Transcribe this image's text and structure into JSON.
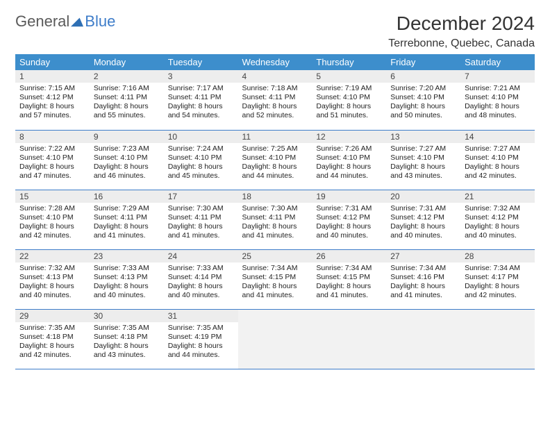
{
  "branding": {
    "word1": "General",
    "word2": "Blue",
    "logo_fill": "#2e6fb4"
  },
  "title": "December 2024",
  "location": "Terrebonne, Quebec, Canada",
  "colors": {
    "header_bg": "#3d8ecc",
    "header_text": "#ffffff",
    "rule": "#3d7cc9",
    "daynum_bg": "#ededed",
    "empty_bg": "#f2f2f2"
  },
  "day_names": [
    "Sunday",
    "Monday",
    "Tuesday",
    "Wednesday",
    "Thursday",
    "Friday",
    "Saturday"
  ],
  "weeks": [
    [
      {
        "n": "1",
        "sr": "7:15 AM",
        "ss": "4:12 PM",
        "dl": "8 hours and 57 minutes."
      },
      {
        "n": "2",
        "sr": "7:16 AM",
        "ss": "4:11 PM",
        "dl": "8 hours and 55 minutes."
      },
      {
        "n": "3",
        "sr": "7:17 AM",
        "ss": "4:11 PM",
        "dl": "8 hours and 54 minutes."
      },
      {
        "n": "4",
        "sr": "7:18 AM",
        "ss": "4:11 PM",
        "dl": "8 hours and 52 minutes."
      },
      {
        "n": "5",
        "sr": "7:19 AM",
        "ss": "4:10 PM",
        "dl": "8 hours and 51 minutes."
      },
      {
        "n": "6",
        "sr": "7:20 AM",
        "ss": "4:10 PM",
        "dl": "8 hours and 50 minutes."
      },
      {
        "n": "7",
        "sr": "7:21 AM",
        "ss": "4:10 PM",
        "dl": "8 hours and 48 minutes."
      }
    ],
    [
      {
        "n": "8",
        "sr": "7:22 AM",
        "ss": "4:10 PM",
        "dl": "8 hours and 47 minutes."
      },
      {
        "n": "9",
        "sr": "7:23 AM",
        "ss": "4:10 PM",
        "dl": "8 hours and 46 minutes."
      },
      {
        "n": "10",
        "sr": "7:24 AM",
        "ss": "4:10 PM",
        "dl": "8 hours and 45 minutes."
      },
      {
        "n": "11",
        "sr": "7:25 AM",
        "ss": "4:10 PM",
        "dl": "8 hours and 44 minutes."
      },
      {
        "n": "12",
        "sr": "7:26 AM",
        "ss": "4:10 PM",
        "dl": "8 hours and 44 minutes."
      },
      {
        "n": "13",
        "sr": "7:27 AM",
        "ss": "4:10 PM",
        "dl": "8 hours and 43 minutes."
      },
      {
        "n": "14",
        "sr": "7:27 AM",
        "ss": "4:10 PM",
        "dl": "8 hours and 42 minutes."
      }
    ],
    [
      {
        "n": "15",
        "sr": "7:28 AM",
        "ss": "4:10 PM",
        "dl": "8 hours and 42 minutes."
      },
      {
        "n": "16",
        "sr": "7:29 AM",
        "ss": "4:11 PM",
        "dl": "8 hours and 41 minutes."
      },
      {
        "n": "17",
        "sr": "7:30 AM",
        "ss": "4:11 PM",
        "dl": "8 hours and 41 minutes."
      },
      {
        "n": "18",
        "sr": "7:30 AM",
        "ss": "4:11 PM",
        "dl": "8 hours and 41 minutes."
      },
      {
        "n": "19",
        "sr": "7:31 AM",
        "ss": "4:12 PM",
        "dl": "8 hours and 40 minutes."
      },
      {
        "n": "20",
        "sr": "7:31 AM",
        "ss": "4:12 PM",
        "dl": "8 hours and 40 minutes."
      },
      {
        "n": "21",
        "sr": "7:32 AM",
        "ss": "4:12 PM",
        "dl": "8 hours and 40 minutes."
      }
    ],
    [
      {
        "n": "22",
        "sr": "7:32 AM",
        "ss": "4:13 PM",
        "dl": "8 hours and 40 minutes."
      },
      {
        "n": "23",
        "sr": "7:33 AM",
        "ss": "4:13 PM",
        "dl": "8 hours and 40 minutes."
      },
      {
        "n": "24",
        "sr": "7:33 AM",
        "ss": "4:14 PM",
        "dl": "8 hours and 40 minutes."
      },
      {
        "n": "25",
        "sr": "7:34 AM",
        "ss": "4:15 PM",
        "dl": "8 hours and 41 minutes."
      },
      {
        "n": "26",
        "sr": "7:34 AM",
        "ss": "4:15 PM",
        "dl": "8 hours and 41 minutes."
      },
      {
        "n": "27",
        "sr": "7:34 AM",
        "ss": "4:16 PM",
        "dl": "8 hours and 41 minutes."
      },
      {
        "n": "28",
        "sr": "7:34 AM",
        "ss": "4:17 PM",
        "dl": "8 hours and 42 minutes."
      }
    ],
    [
      {
        "n": "29",
        "sr": "7:35 AM",
        "ss": "4:18 PM",
        "dl": "8 hours and 42 minutes."
      },
      {
        "n": "30",
        "sr": "7:35 AM",
        "ss": "4:18 PM",
        "dl": "8 hours and 43 minutes."
      },
      {
        "n": "31",
        "sr": "7:35 AM",
        "ss": "4:19 PM",
        "dl": "8 hours and 44 minutes."
      },
      null,
      null,
      null,
      null
    ]
  ],
  "labels": {
    "sunrise": "Sunrise: ",
    "sunset": "Sunset: ",
    "daylight": "Daylight: "
  }
}
